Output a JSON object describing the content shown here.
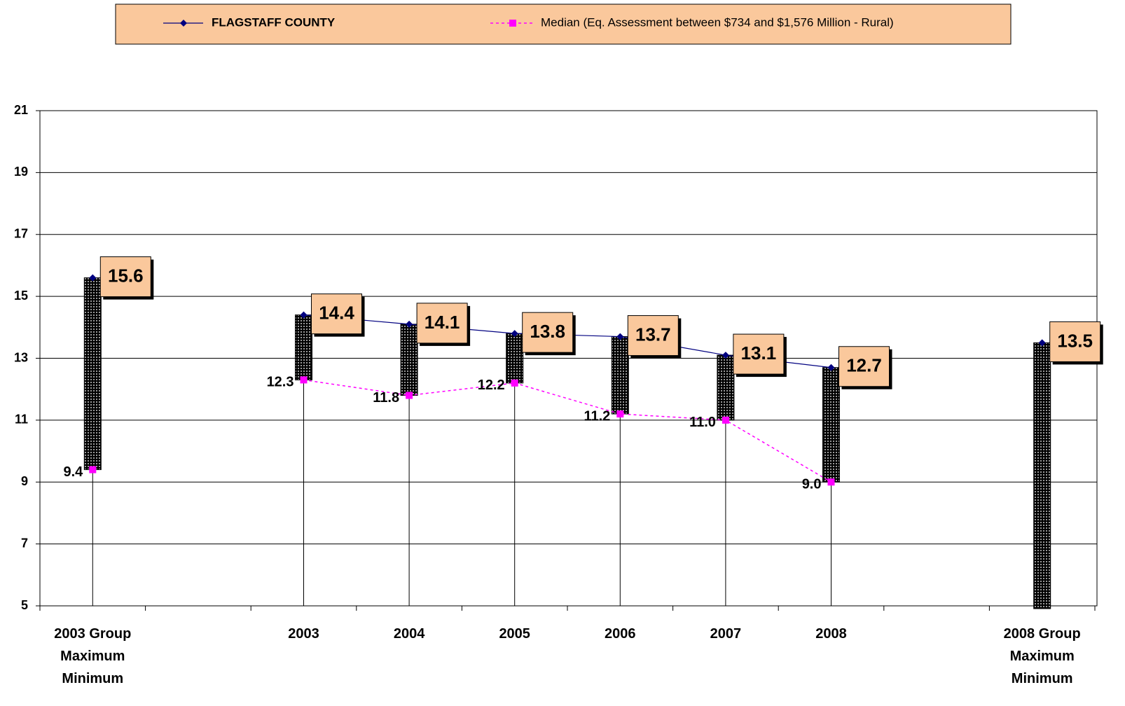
{
  "chart_data": {
    "type": "line",
    "categories": [
      "2003 Group\nMaximum\nMinimum",
      null,
      "2003",
      "2004",
      "2005",
      "2006",
      "2007",
      "2008",
      null,
      "2008 Group\nMaximum\nMinimum"
    ],
    "series": [
      {
        "name": "FLAGSTAFF COUNTY",
        "color": "#000080",
        "marker": "diamond",
        "values": [
          15.6,
          null,
          14.4,
          14.1,
          13.8,
          13.7,
          13.1,
          12.7,
          null,
          13.5
        ]
      },
      {
        "name": "Median (Eq. Assessment between $734 and $1,576 Million - Rural)",
        "color": "#ff00ff",
        "marker": "square",
        "dashed": true,
        "values": [
          9.4,
          null,
          12.3,
          11.8,
          12.2,
          11.2,
          11.0,
          9.0,
          null,
          4.9
        ],
        "value_labels": [
          "9.4",
          null,
          "12.3",
          "11.8",
          "12.2",
          "11.2",
          "11.0",
          "9.0",
          null,
          null
        ]
      }
    ],
    "ylim": [
      5,
      21
    ],
    "yticks": [
      5,
      7,
      9,
      11,
      13,
      15,
      17,
      19,
      21
    ],
    "grid": true,
    "legend": "top"
  }
}
